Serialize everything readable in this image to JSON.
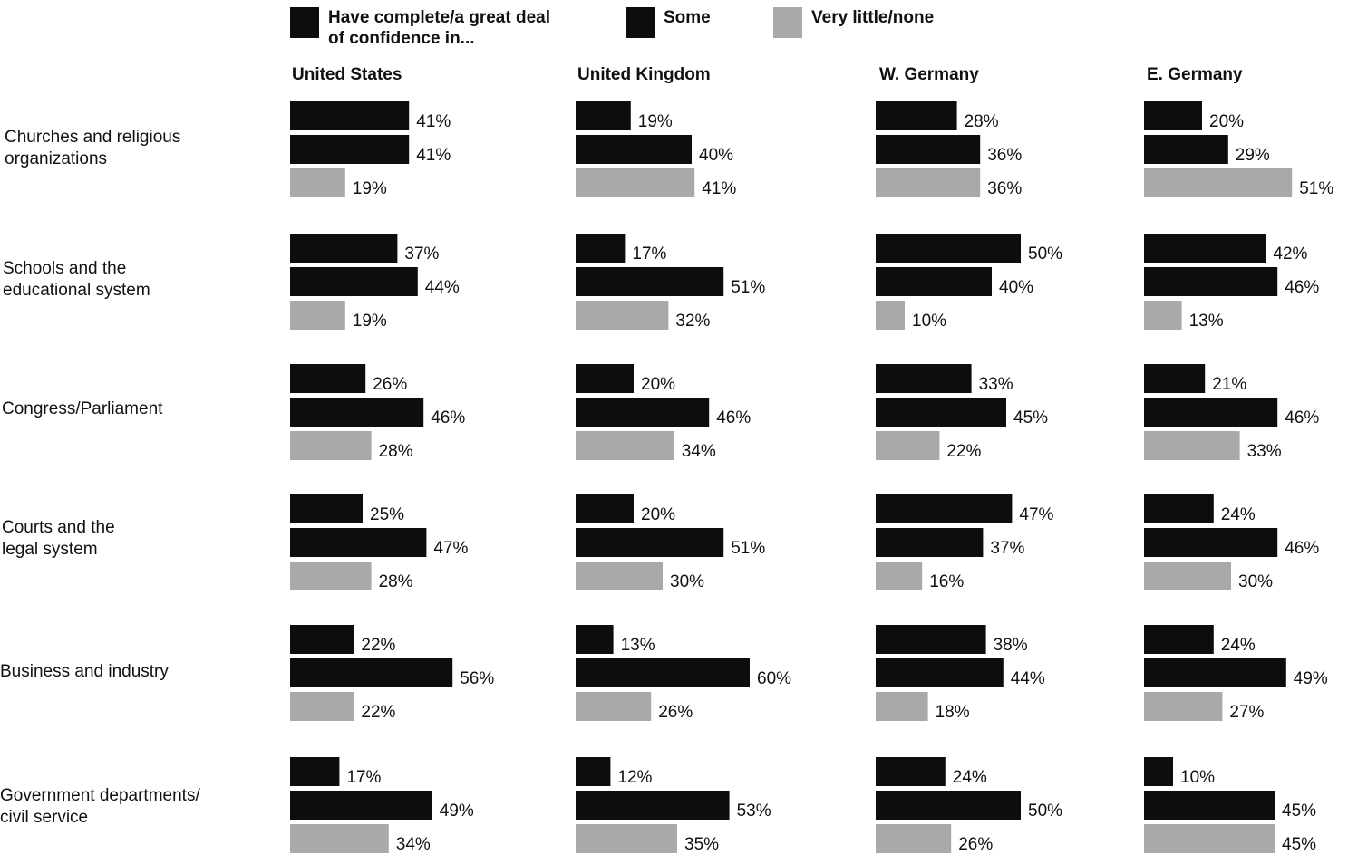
{
  "colors": {
    "high": "#0d0d0d",
    "some": "#0d0d0d",
    "little": "#a9a9a9"
  },
  "legend": [
    {
      "label": "Have complete/a great deal\nof confidence in...",
      "color": "#0d0d0d"
    },
    {
      "label": "Some",
      "color": "#0d0d0d"
    },
    {
      "label": "Very little/none",
      "color": "#a9a9a9"
    }
  ],
  "chart_data": {
    "type": "bar",
    "orientation": "horizontal",
    "panels": [
      "United States",
      "United Kingdom",
      "W. Germany",
      "E. Germany"
    ],
    "categories": [
      "Churches and religious\norganizations",
      "Schools and the\neducational system",
      "Congress/Parliament",
      "Courts and the\nlegal system",
      "Business and industry",
      "Government departments/\ncivil service"
    ],
    "series": [
      {
        "name": "Have complete/a great deal of confidence in...",
        "values": [
          [
            41,
            19,
            28,
            20
          ],
          [
            37,
            17,
            50,
            42
          ],
          [
            26,
            20,
            33,
            21
          ],
          [
            25,
            20,
            47,
            24
          ],
          [
            22,
            13,
            38,
            24
          ],
          [
            17,
            12,
            24,
            10
          ]
        ]
      },
      {
        "name": "Some",
        "values": [
          [
            41,
            40,
            36,
            29
          ],
          [
            44,
            51,
            40,
            46
          ],
          [
            46,
            46,
            45,
            46
          ],
          [
            47,
            51,
            37,
            46
          ],
          [
            56,
            60,
            44,
            49
          ],
          [
            49,
            53,
            50,
            45
          ]
        ]
      },
      {
        "name": "Very little/none",
        "values": [
          [
            19,
            41,
            36,
            51
          ],
          [
            19,
            32,
            10,
            13
          ],
          [
            28,
            34,
            22,
            33
          ],
          [
            28,
            30,
            16,
            30
          ],
          [
            22,
            26,
            18,
            27
          ],
          [
            34,
            35,
            26,
            45
          ]
        ]
      }
    ],
    "unit": "%",
    "xlim": [
      0,
      60
    ]
  }
}
